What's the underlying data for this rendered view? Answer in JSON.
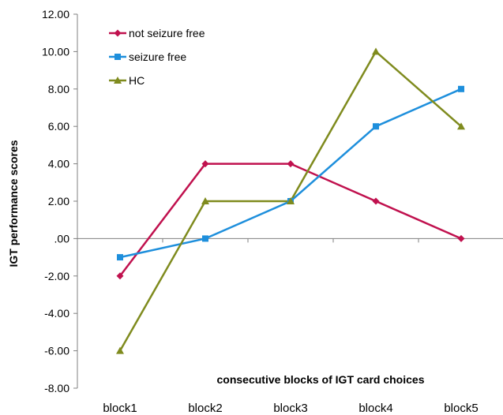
{
  "chart_data": {
    "type": "line",
    "title": "",
    "xlabel": "consecutive blocks of IGT card choices",
    "ylabel": "IGT performance scores",
    "categories": [
      "block1",
      "block2",
      "block3",
      "block4",
      "block5"
    ],
    "yticks": [
      "12.00",
      "10.00",
      "8.00",
      "6.00",
      "4.00",
      "2.00",
      ".00",
      "-2.00",
      "-4.00",
      "-6.00",
      "-8.00"
    ],
    "ylim": [
      -8,
      12
    ],
    "grid": false,
    "legend_position": "top-left",
    "series": [
      {
        "name": "not seizure free",
        "color": "#C0114E",
        "marker": "diamond",
        "values": [
          -2,
          4,
          4,
          2,
          0
        ]
      },
      {
        "name": "seizure free",
        "color": "#1E8FDC",
        "marker": "square",
        "values": [
          -1,
          0,
          2,
          6,
          8
        ]
      },
      {
        "name": "HC",
        "color": "#7F8B1E",
        "marker": "triangle",
        "values": [
          -6,
          2,
          2,
          10,
          6
        ]
      }
    ]
  }
}
